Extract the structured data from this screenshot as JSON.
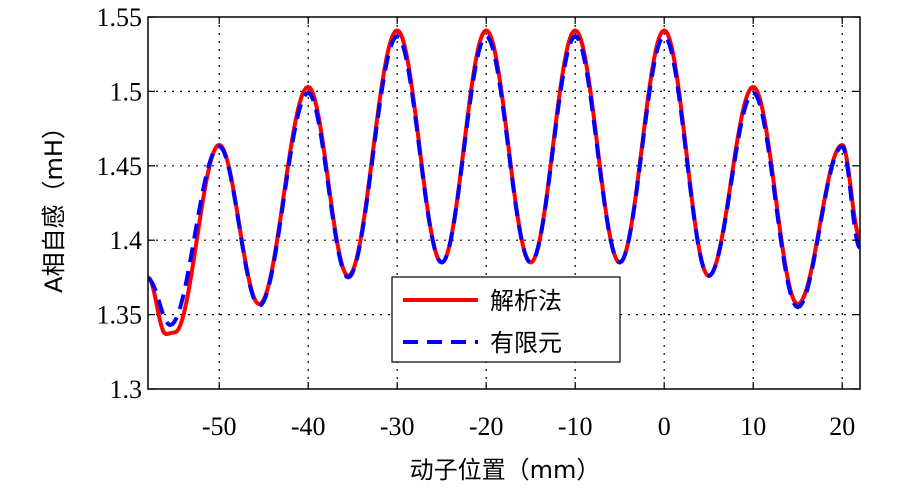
{
  "chart_data": {
    "type": "line",
    "xlabel": "动子位置（mm）",
    "ylabel": "A相自感（mH）",
    "xlim": [
      -58,
      22
    ],
    "ylim": [
      1.3,
      1.55
    ],
    "xticks": [
      -50,
      -40,
      -30,
      -20,
      -10,
      0,
      10,
      20
    ],
    "yticks": [
      1.3,
      1.35,
      1.4,
      1.45,
      1.5,
      1.55
    ],
    "xtick_labels": [
      "-50",
      "-40",
      "-30",
      "-20",
      "-10",
      "0",
      "10",
      "20"
    ],
    "ytick_labels": [
      "1.3",
      "1.35",
      "1.4",
      "1.45",
      "1.5",
      "1.55"
    ],
    "grid": true,
    "legend_position": "lower-center",
    "series": [
      {
        "name": "解析法",
        "color": "#ff0000",
        "style": "solid",
        "x": [
          -58,
          -56,
          -55,
          -50,
          -45.5,
          -40,
          -35.5,
          -30,
          -25,
          -20,
          -15,
          -10,
          -5,
          0,
          5,
          10,
          15,
          20,
          22
        ],
        "y": [
          1.375,
          1.337,
          1.338,
          1.464,
          1.357,
          1.503,
          1.376,
          1.541,
          1.385,
          1.541,
          1.385,
          1.541,
          1.385,
          1.541,
          1.376,
          1.503,
          1.357,
          1.464,
          1.402
        ]
      },
      {
        "name": "有限元",
        "color": "#0000ff",
        "style": "dashed",
        "x": [
          -58,
          -55.5,
          -50,
          -45.5,
          -40,
          -35.5,
          -30,
          -25,
          -20,
          -15,
          -10,
          -5,
          0,
          5,
          10,
          15,
          20,
          22
        ],
        "y": [
          1.374,
          1.343,
          1.463,
          1.356,
          1.499,
          1.375,
          1.537,
          1.385,
          1.537,
          1.385,
          1.537,
          1.385,
          1.537,
          1.376,
          1.499,
          1.355,
          1.463,
          1.395
        ]
      }
    ]
  },
  "colors": {
    "axis": "#000000",
    "grid": "#000000",
    "background": "#ffffff"
  }
}
